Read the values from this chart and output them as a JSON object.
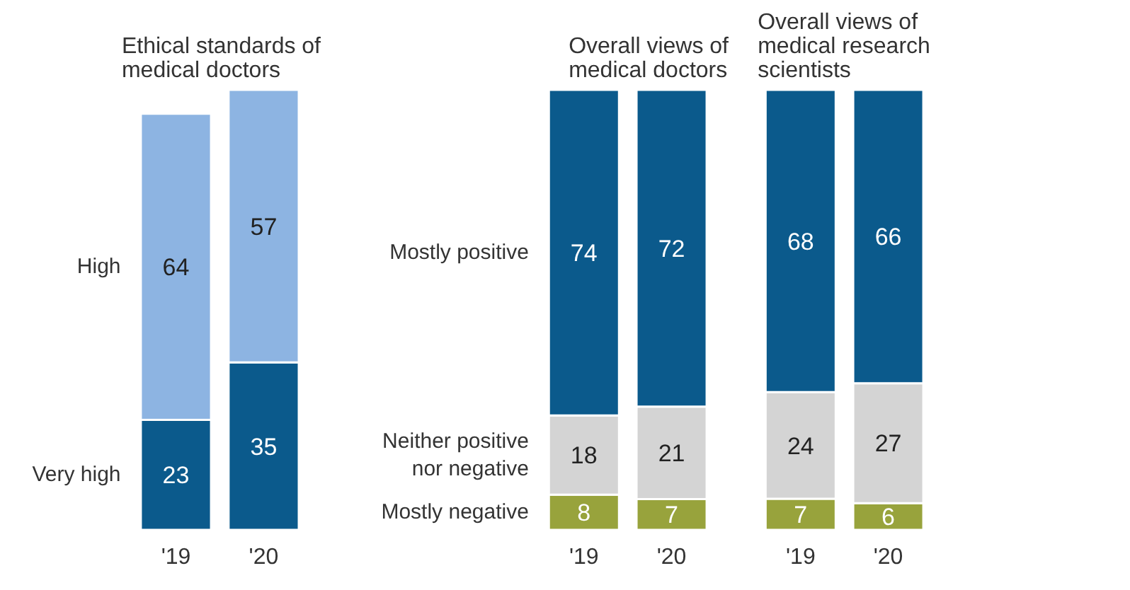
{
  "chart_data": [
    {
      "type": "bar",
      "title": "Ethical standards of\nmedical doctors",
      "categories": [
        "'19",
        "'20"
      ],
      "stacked": true,
      "data_labels": true,
      "tick_labels": "x",
      "series": [
        {
          "name": "Very high",
          "color": "#0b5a8c",
          "values": [
            23,
            35
          ]
        },
        {
          "name": "High",
          "color": "#8db4e2",
          "values": [
            64,
            57
          ]
        }
      ]
    },
    {
      "type": "bar",
      "title": "Overall views of\nmedical doctors",
      "categories": [
        "'19",
        "'20"
      ],
      "stacked": true,
      "data_labels": true,
      "tick_labels": "x",
      "series": [
        {
          "name": "Mostly negative",
          "color": "#98a33c",
          "values": [
            8,
            7
          ]
        },
        {
          "name": "Neither positive nor negative",
          "color": "#d4d4d4",
          "values": [
            18,
            21
          ]
        },
        {
          "name": "Mostly positive",
          "color": "#0b5a8c",
          "values": [
            74,
            72
          ]
        }
      ]
    },
    {
      "type": "bar",
      "title": "Overall views of\nmedical research\nscientists",
      "categories": [
        "'19",
        "'20"
      ],
      "stacked": true,
      "data_labels": true,
      "tick_labels": "x",
      "series": [
        {
          "color": "#98a33c",
          "values": [
            7,
            6
          ]
        },
        {
          "color": "#d4d4d4",
          "values": [
            24,
            27
          ]
        },
        {
          "color": "#0b5a8c",
          "values": [
            68,
            66
          ]
        }
      ]
    }
  ]
}
